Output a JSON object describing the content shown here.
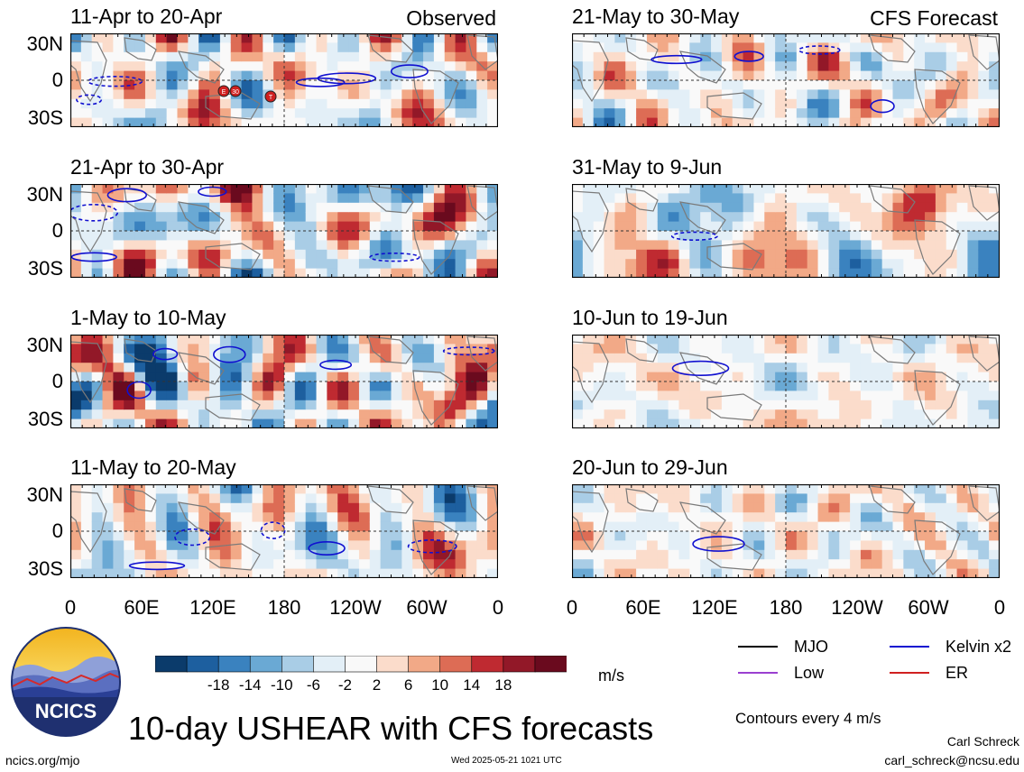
{
  "chart_data": {
    "type": "heatmap",
    "title": "10-day USHEAR with CFS forecasts",
    "units": "m/s",
    "colorbar_ticks": [
      "-18",
      "-14",
      "-10",
      "-6",
      "-2",
      "2",
      "6",
      "10",
      "14",
      "18"
    ],
    "colorbar_colors": [
      "#0b3b6b",
      "#1d5f9f",
      "#3a82bf",
      "#6aa9d4",
      "#a9cde6",
      "#e3eff7",
      "#f9f9f9",
      "#fbdccb",
      "#f2a987",
      "#dd6c55",
      "#bf2a31",
      "#921828",
      "#6a0a1e"
    ],
    "y_ticks": [
      "30N",
      "0",
      "30S"
    ],
    "x_ticks": [
      "0",
      "60E",
      "120E",
      "180",
      "120W",
      "60W",
      "0"
    ],
    "columns": [
      {
        "tag": "Observed",
        "panels": [
          {
            "title": "11-Apr to 20-Apr",
            "seed": 3
          },
          {
            "title": "21-Apr to 30-Apr",
            "seed": 7
          },
          {
            "title": "1-May to 10-May",
            "seed": 11
          },
          {
            "title": "11-May to 20-May",
            "seed": 17
          }
        ]
      },
      {
        "tag": "CFS Forecast",
        "panels": [
          {
            "title": "21-May to 30-May",
            "seed": 23
          },
          {
            "title": "31-May to 9-Jun",
            "seed": 29
          },
          {
            "title": "10-Jun to 19-Jun",
            "seed": 31
          },
          {
            "title": "20-Jun to 29-Jun",
            "seed": 37
          }
        ]
      }
    ],
    "storm_markers": [
      "E",
      "30",
      "T"
    ]
  },
  "legend": {
    "items": [
      {
        "label": "MJO",
        "color": "#000000"
      },
      {
        "label": "Kelvin x2",
        "color": "#1010d0"
      },
      {
        "label": "Low",
        "color": "#9a40d0"
      },
      {
        "label": "ER",
        "color": "#d02020"
      }
    ],
    "contours_note": "Contours every 4 m/s"
  },
  "footer": {
    "logo_text": "NCICS",
    "site": "ncics.org/mjo",
    "timestamp": "Wed 2025-05-21 1021 UTC",
    "author": "Carl Schreck",
    "email": "carl_schreck@ncsu.edu"
  }
}
